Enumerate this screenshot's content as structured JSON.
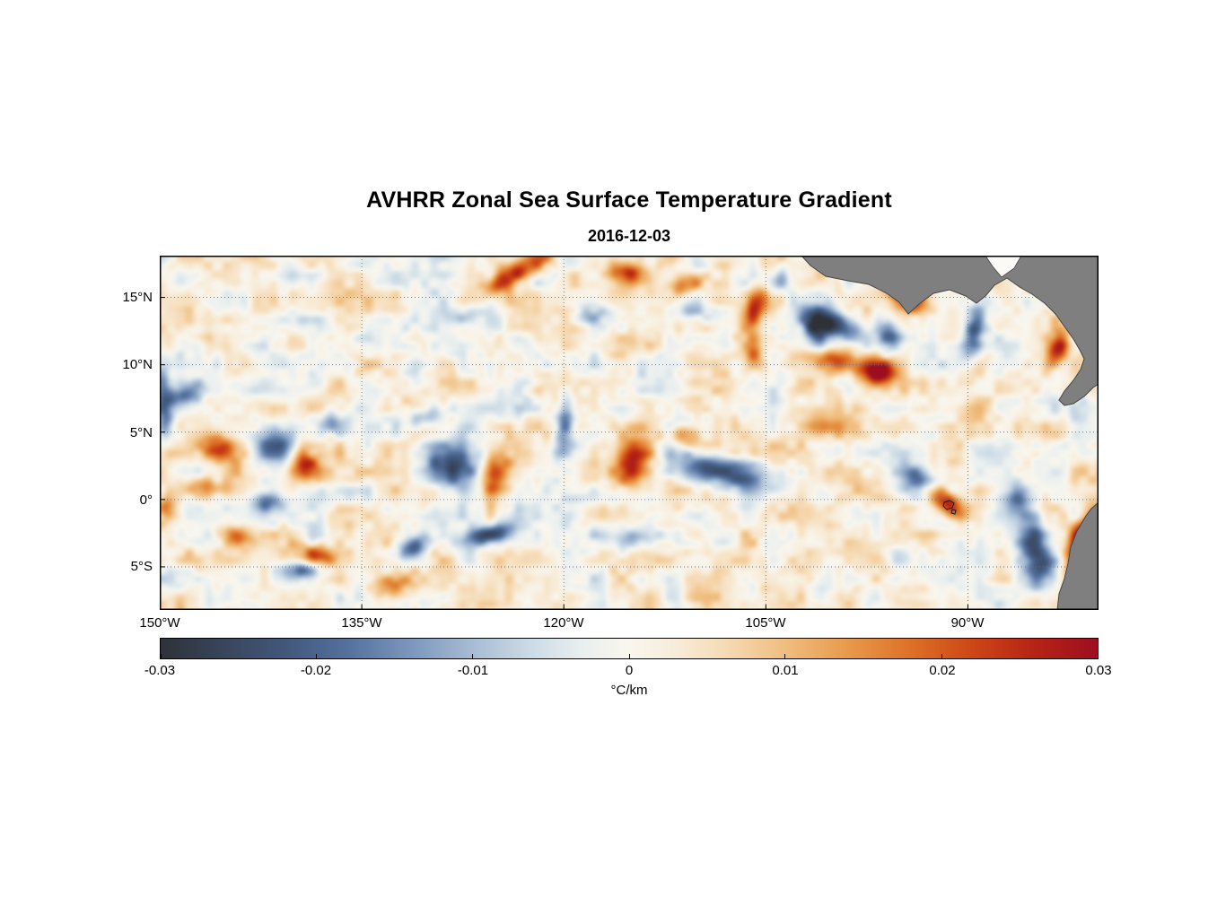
{
  "figure": {
    "title": "AVHRR Zonal Sea Surface Temperature Gradient",
    "date": "2016-12-03"
  },
  "axes": {
    "x_ticks": [
      {
        "label": "150°W",
        "lon": -150
      },
      {
        "label": "135°W",
        "lon": -135
      },
      {
        "label": "120°W",
        "lon": -120
      },
      {
        "label": "105°W",
        "lon": -105
      },
      {
        "label": "90°W",
        "lon": -90
      }
    ],
    "y_ticks": [
      {
        "label": "15°N",
        "lat": 15
      },
      {
        "label": "10°N",
        "lat": 10
      },
      {
        "label": "5°N",
        "lat": 5
      },
      {
        "label": "0°",
        "lat": 0
      },
      {
        "label": "5°S",
        "lat": -5
      }
    ],
    "lon_range": [
      -150,
      -80.3
    ],
    "lat_range": [
      -8.2,
      18.1
    ]
  },
  "colorbar": {
    "min": -0.03,
    "max": 0.03,
    "tick_labels": [
      "-0.03",
      "-0.02",
      "-0.01",
      "0",
      "0.01",
      "0.02",
      "0.03"
    ],
    "units_label": "°C/km",
    "stops": [
      {
        "v": -0.03,
        "c": "#2e3138"
      },
      {
        "v": -0.026,
        "c": "#39455c"
      },
      {
        "v": -0.022,
        "c": "#41587b"
      },
      {
        "v": -0.018,
        "c": "#54719d"
      },
      {
        "v": -0.014,
        "c": "#7b97bd"
      },
      {
        "v": -0.01,
        "c": "#a7bcd4"
      },
      {
        "v": -0.006,
        "c": "#cfdde7"
      },
      {
        "v": -0.003,
        "c": "#e9efef"
      },
      {
        "v": 0.0,
        "c": "#f9f6ee"
      },
      {
        "v": 0.003,
        "c": "#f8ecd9"
      },
      {
        "v": 0.006,
        "c": "#f6dcb7"
      },
      {
        "v": 0.01,
        "c": "#f0bd7e"
      },
      {
        "v": 0.014,
        "c": "#e89a4c"
      },
      {
        "v": 0.018,
        "c": "#dd7127"
      },
      {
        "v": 0.022,
        "c": "#cc4616"
      },
      {
        "v": 0.026,
        "c": "#b52415"
      },
      {
        "v": 0.03,
        "c": "#9c0e20"
      }
    ]
  },
  "chart_data": {
    "type": "heatmap",
    "title": "AVHRR Zonal Sea Surface Temperature Gradient",
    "subtitle": "2016-12-03",
    "variable": "zonal sea surface temperature gradient",
    "units": "°C/km",
    "lon_range": [
      -150,
      -80.3
    ],
    "lat_range": [
      -8.2,
      18.1
    ],
    "value_range": [
      -0.03,
      0.03
    ],
    "colormap": "diverging dark-blue / white / dark-red",
    "background_bias": 0.0015,
    "noise_amplitude_large": 0.0068,
    "noise_amplitude_small": 0.0035,
    "features_format": [
      "lon_deg",
      "lat_deg",
      "peak_value_C_per_km",
      "sigma_lon_deg",
      "sigma_lat_deg",
      "rotation_deg"
    ],
    "features": [
      [
        -123.5,
        17.1,
        0.026,
        1.6,
        0.6,
        -25
      ],
      [
        -115.2,
        17.0,
        0.022,
        1.2,
        0.6,
        15
      ],
      [
        -110.9,
        16.1,
        0.02,
        1.0,
        0.5,
        -10
      ],
      [
        -106.0,
        14.3,
        0.02,
        0.6,
        1.2,
        20
      ],
      [
        -99.9,
        13.0,
        -0.024,
        1.8,
        0.7,
        25
      ],
      [
        -96.0,
        12.5,
        -0.022,
        0.7,
        1.0,
        -15
      ],
      [
        -94.7,
        15.1,
        0.024,
        1.0,
        0.6,
        30
      ],
      [
        -99.5,
        10.3,
        0.022,
        1.6,
        0.6,
        10
      ],
      [
        -96.7,
        9.5,
        0.027,
        0.9,
        0.7,
        0
      ],
      [
        -89.7,
        12.3,
        -0.02,
        0.5,
        1.3,
        10
      ],
      [
        -83.5,
        11.1,
        0.026,
        0.5,
        1.1,
        20
      ],
      [
        -148.2,
        7.9,
        -0.018,
        1.2,
        0.5,
        -20
      ],
      [
        -149.7,
        5.7,
        -0.02,
        0.5,
        1.0,
        0
      ],
      [
        -149.9,
        8.6,
        -0.016,
        0.4,
        1.2,
        0
      ],
      [
        -145.7,
        3.9,
        0.02,
        1.0,
        0.7,
        20
      ],
      [
        -141.5,
        3.9,
        -0.024,
        1.1,
        0.9,
        0
      ],
      [
        -139.3,
        2.7,
        0.022,
        0.8,
        1.0,
        -20
      ],
      [
        -146.7,
        1.0,
        0.018,
        1.2,
        0.6,
        0
      ],
      [
        -141.9,
        -0.1,
        -0.014,
        1.0,
        0.5,
        0
      ],
      [
        -128.5,
        2.8,
        -0.026,
        1.5,
        1.2,
        15
      ],
      [
        -125.2,
        1.9,
        0.024,
        0.7,
        1.4,
        15
      ],
      [
        -120.0,
        5.7,
        -0.022,
        0.5,
        1.5,
        5
      ],
      [
        -114.9,
        2.7,
        0.027,
        1.0,
        1.5,
        10
      ],
      [
        -108.2,
        2.2,
        -0.024,
        2.6,
        0.8,
        12
      ],
      [
        -111.2,
        4.9,
        0.018,
        0.9,
        0.5,
        0
      ],
      [
        -93.7,
        1.6,
        -0.022,
        0.8,
        0.8,
        0
      ],
      [
        -91.6,
        -0.2,
        0.03,
        1.2,
        0.6,
        35
      ],
      [
        -86.3,
        0.1,
        -0.018,
        0.7,
        0.9,
        0
      ],
      [
        -81.7,
        -3.0,
        0.03,
        0.6,
        1.8,
        18
      ],
      [
        -84.4,
        -5.0,
        -0.022,
        0.9,
        1.1,
        0
      ],
      [
        -81.2,
        -6.9,
        -0.02,
        0.8,
        0.8,
        0
      ],
      [
        -125.7,
        -2.5,
        -0.022,
        1.4,
        0.5,
        -12
      ],
      [
        -131.3,
        -3.5,
        -0.018,
        1.2,
        0.5,
        -25
      ],
      [
        -138.3,
        -4.0,
        0.018,
        1.0,
        0.5,
        10
      ],
      [
        -139.7,
        -5.1,
        -0.018,
        1.1,
        0.5,
        5
      ],
      [
        -132.9,
        -6.3,
        0.018,
        1.1,
        0.6,
        -8
      ],
      [
        -137.1,
        5.7,
        -0.016,
        0.9,
        0.6,
        20
      ],
      [
        -130.5,
        6.2,
        -0.016,
        1.1,
        0.6,
        -15
      ],
      [
        -118.0,
        13.9,
        -0.014,
        1.0,
        0.7,
        0
      ],
      [
        -127.5,
        13.7,
        -0.012,
        1.0,
        0.6,
        0
      ],
      [
        -104.1,
        16.3,
        -0.014,
        0.9,
        0.6,
        -30
      ],
      [
        -125.0,
        15.9,
        0.016,
        0.9,
        0.5,
        -30
      ],
      [
        -101.4,
        5.6,
        0.012,
        1.5,
        0.8,
        0
      ],
      [
        -85.3,
        -2.7,
        -0.016,
        0.8,
        1.2,
        0
      ],
      [
        -149.5,
        -0.3,
        0.016,
        0.5,
        0.8,
        0
      ],
      [
        -144.4,
        -2.6,
        0.016,
        0.9,
        0.5,
        15
      ],
      [
        -115.2,
        -2.9,
        -0.012,
        1.2,
        0.6,
        0
      ],
      [
        -101.5,
        12.8,
        -0.02,
        0.6,
        1.0,
        -20
      ],
      [
        -106.0,
        10.7,
        0.016,
        0.6,
        0.9,
        0
      ],
      [
        -110.5,
        13.9,
        -0.012,
        1.2,
        0.6,
        0
      ]
    ]
  },
  "map": {
    "land_color": "#7f7f7f",
    "coast_color": "#454545",
    "ocean_gap_color": "#fbfaf7",
    "land_polygons": {
      "central_america": [
        [
          715,
          0
        ],
        [
          1046,
          0
        ],
        [
          1046,
          143
        ],
        [
          1040,
          147
        ],
        [
          1030,
          157
        ],
        [
          1018,
          165
        ],
        [
          1008,
          167
        ],
        [
          1002,
          161
        ],
        [
          1008,
          151
        ],
        [
          1018,
          139
        ],
        [
          1026,
          127
        ],
        [
          1030,
          115
        ],
        [
          1025,
          105
        ],
        [
          1018,
          93
        ],
        [
          1008,
          79
        ],
        [
          998,
          65
        ],
        [
          986,
          53
        ],
        [
          972,
          43
        ],
        [
          958,
          35
        ],
        [
          944,
          25
        ],
        [
          930,
          33
        ],
        [
          920,
          45
        ],
        [
          910,
          53
        ],
        [
          898,
          45
        ],
        [
          880,
          38
        ],
        [
          862,
          42
        ],
        [
          846,
          54
        ],
        [
          834,
          65
        ],
        [
          824,
          52
        ],
        [
          810,
          42
        ],
        [
          790,
          32
        ],
        [
          767,
          28
        ],
        [
          742,
          23
        ],
        [
          725,
          11
        ]
      ],
      "top_notch_ocean": [
        [
          920,
          0
        ],
        [
          960,
          0
        ],
        [
          952,
          14
        ],
        [
          938,
          24
        ],
        [
          928,
          12
        ]
      ],
      "south_america": [
        [
          1046,
          275
        ],
        [
          1038,
          282
        ],
        [
          1032,
          290
        ],
        [
          1022,
          307
        ],
        [
          1015,
          325
        ],
        [
          1012,
          343
        ],
        [
          1008,
          360
        ],
        [
          1002,
          377
        ],
        [
          1000,
          395
        ],
        [
          1046,
          395
        ]
      ]
    },
    "galapagos_outlines": [
      [
        [
          874,
          275
        ],
        [
          880,
          273
        ],
        [
          885,
          276
        ],
        [
          883,
          281
        ],
        [
          877,
          283
        ],
        [
          873,
          279
        ]
      ],
      [
        [
          883,
          283
        ],
        [
          887,
          284
        ],
        [
          886,
          288
        ],
        [
          882,
          287
        ]
      ]
    ]
  }
}
